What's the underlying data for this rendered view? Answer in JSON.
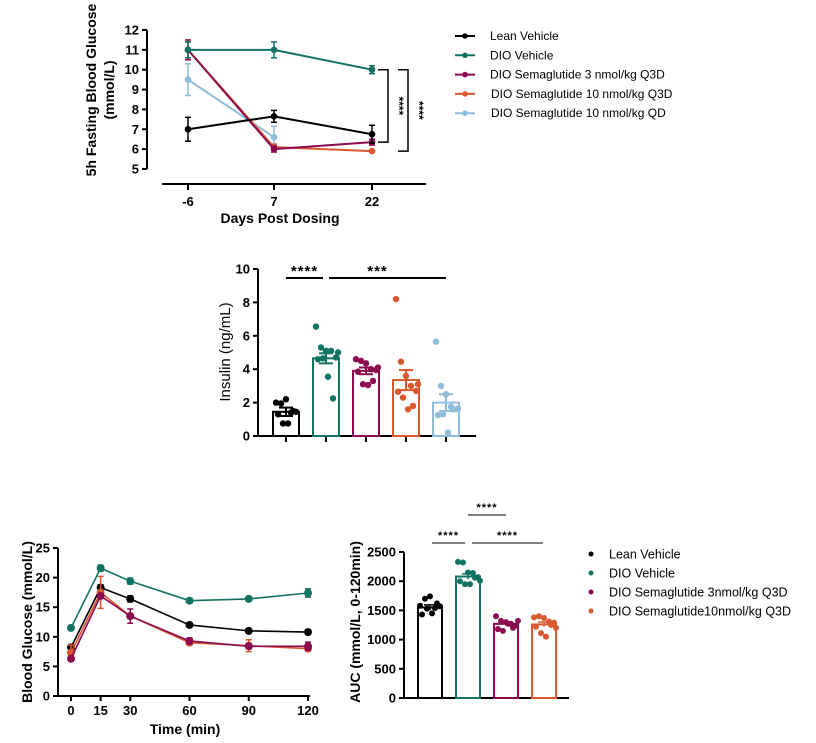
{
  "colors": {
    "lean": "#000000",
    "dio": "#127264",
    "sema3": "#8b0a50",
    "sema10": "#d9582f",
    "sema10qd": "#8fbcd8"
  },
  "chart_data": [
    {
      "type": "line",
      "ylabel": "5h Fasting Blood Glucose (mmol/L)",
      "ylabel_lines": [
        "5h Fasting Blood Glucose",
        "(mmol/L)"
      ],
      "xlabel": "Days Post Dosing",
      "categories": [
        "-6",
        "7",
        "22"
      ],
      "ylim": [
        5,
        12
      ],
      "yticks": [
        "5",
        "6",
        "7",
        "8",
        "9",
        "10",
        "11",
        "12"
      ],
      "legend_position": "right",
      "series": [
        {
          "name": "Lean Vehicle",
          "key": "lean",
          "values": [
            7.0,
            7.65,
            6.75
          ],
          "sem": [
            0.6,
            0.3,
            0.45
          ]
        },
        {
          "name": "DIO Vehicle",
          "key": "dio",
          "values": [
            11.0,
            11.0,
            10.0
          ],
          "sem": [
            0.4,
            0.4,
            0.2
          ]
        },
        {
          "name": "DIO Semaglutide 3 nmol/kg Q3D",
          "key": "sema3",
          "values": [
            11.0,
            6.0,
            6.35
          ],
          "sem": [
            0.5,
            0.15,
            0.15
          ]
        },
        {
          "name": "DIO Semaglutide 10 nmol/kg Q3D",
          "key": "sema10",
          "values": [
            11.0,
            6.1,
            5.9
          ],
          "sem": [
            0.4,
            0.15,
            0.05
          ]
        },
        {
          "name": "DIO Semaglutide 10 nmol/kg QD",
          "key": "sema10qd",
          "values": [
            9.5,
            6.6,
            null
          ],
          "sem": [
            0.8,
            0.55,
            null
          ]
        }
      ],
      "annotations": [
        {
          "text": "****",
          "from": 10.0,
          "to": 6.35
        },
        {
          "text": "****",
          "from": 10.0,
          "to": 5.9
        }
      ]
    },
    {
      "type": "bar",
      "ylabel": "Insulin (ng/mL)",
      "ylim": [
        0,
        10
      ],
      "yticks": [
        "0",
        "2",
        "4",
        "6",
        "8",
        "10"
      ],
      "categories": [
        "Lean Vehicle",
        "DIO Vehicle",
        "DIO Semaglutide 3 nmol/kg Q3D",
        "DIO Semaglutide 10 nmol/kg Q3D",
        "DIO Semaglutide 10 nmol/kg QD"
      ],
      "keys": [
        "lean",
        "dio",
        "sema3",
        "sema10",
        "sema10qd"
      ],
      "values": [
        1.45,
        4.65,
        3.9,
        3.35,
        2.0
      ],
      "sem": [
        0.25,
        0.3,
        0.2,
        0.6,
        0.5
      ],
      "points": [
        [
          2.0,
          1.95,
          2.2,
          1.4,
          1.45,
          1.3,
          0.75,
          0.75,
          1.5
        ],
        [
          6.55,
          5.3,
          5.1,
          5.1,
          4.7,
          4.6,
          4.65,
          3.55,
          2.25,
          5.0
        ],
        [
          4.6,
          4.5,
          4.35,
          4.0,
          3.95,
          3.85,
          3.1,
          3.05,
          3.3,
          4.1
        ],
        [
          8.2,
          4.45,
          3.6,
          3.0,
          2.7,
          2.65,
          2.3,
          1.6,
          1.8,
          3.1
        ],
        [
          5.65,
          3.0,
          2.5,
          1.75,
          1.6,
          1.25,
          1.3,
          0.2,
          1.6,
          1.65
        ]
      ],
      "annotations": [
        {
          "text": "****",
          "from": 0,
          "to": 1
        },
        {
          "text": "***",
          "from": 1,
          "to": 4
        }
      ]
    },
    {
      "type": "line",
      "ylabel": "Blood Glucose (mmol/L)",
      "xlabel": "Time (min)",
      "x": [
        0,
        15,
        30,
        60,
        90,
        120
      ],
      "xticks": [
        "0",
        "15",
        "30",
        "60",
        "90",
        "120"
      ],
      "xlim": [
        0,
        120
      ],
      "ylim": [
        0,
        25
      ],
      "yticks": [
        "0",
        "5",
        "10",
        "15",
        "20",
        "25"
      ],
      "series": [
        {
          "key": "lean",
          "values": [
            8.2,
            18.3,
            16.4,
            12.0,
            11.0,
            10.8
          ],
          "sem": [
            0.5,
            0.5,
            0.5,
            0.3,
            0.3,
            0.4
          ]
        },
        {
          "key": "dio",
          "values": [
            11.5,
            21.6,
            19.4,
            16.1,
            16.4,
            17.4
          ],
          "sem": [
            0.3,
            0.5,
            0.5,
            0.4,
            0.4,
            0.7
          ]
        },
        {
          "key": "sema10",
          "values": [
            7.3,
            17.5,
            13.5,
            9.0,
            8.5,
            8.0
          ],
          "sem": [
            1.3,
            2.7,
            0.4,
            0.3,
            1.0,
            0.3
          ]
        },
        {
          "key": "sema3",
          "values": [
            6.3,
            16.9,
            13.5,
            9.3,
            8.4,
            8.4
          ],
          "sem": [
            0.4,
            0.4,
            1.2,
            0.5,
            0.4,
            0.7
          ]
        }
      ]
    },
    {
      "type": "bar",
      "ylabel": "AUC (mmol/L, 0-120min)",
      "ylim": [
        0,
        2500
      ],
      "yticks": [
        "0",
        "500",
        "1000",
        "1500",
        "2000",
        "2500"
      ],
      "categories": [
        "Lean Vehicle",
        "DIO Vehicle",
        "DIO Semaglutide 3nmol/kg Q3D",
        "DIO Semaglutide10nmol/kg Q3D"
      ],
      "keys": [
        "lean",
        "dio",
        "sema3",
        "sema10"
      ],
      "values": [
        1550,
        2080,
        1270,
        1260
      ],
      "sem": [
        45,
        45,
        35,
        40
      ],
      "points": [
        [
          1580,
          1700,
          1740,
          1540,
          1570,
          1430,
          1530,
          1450,
          1620
        ],
        [
          2330,
          2320,
          2150,
          2140,
          2070,
          2000,
          1950,
          1950,
          2060,
          2010
        ],
        [
          1400,
          1320,
          1300,
          1270,
          1240,
          1180,
          1150,
          1270,
          1200,
          1320
        ],
        [
          1380,
          1400,
          1370,
          1310,
          1290,
          1220,
          1110,
          1050,
          1250,
          1200
        ]
      ],
      "legend_position": "right",
      "annotations": [
        {
          "text": "****",
          "from": 0,
          "to": 1,
          "level": 1
        },
        {
          "text": "****",
          "from": 1,
          "to": 3,
          "level": 1
        },
        {
          "text": "****",
          "from": 1,
          "to": 2,
          "level": 2
        }
      ]
    }
  ]
}
